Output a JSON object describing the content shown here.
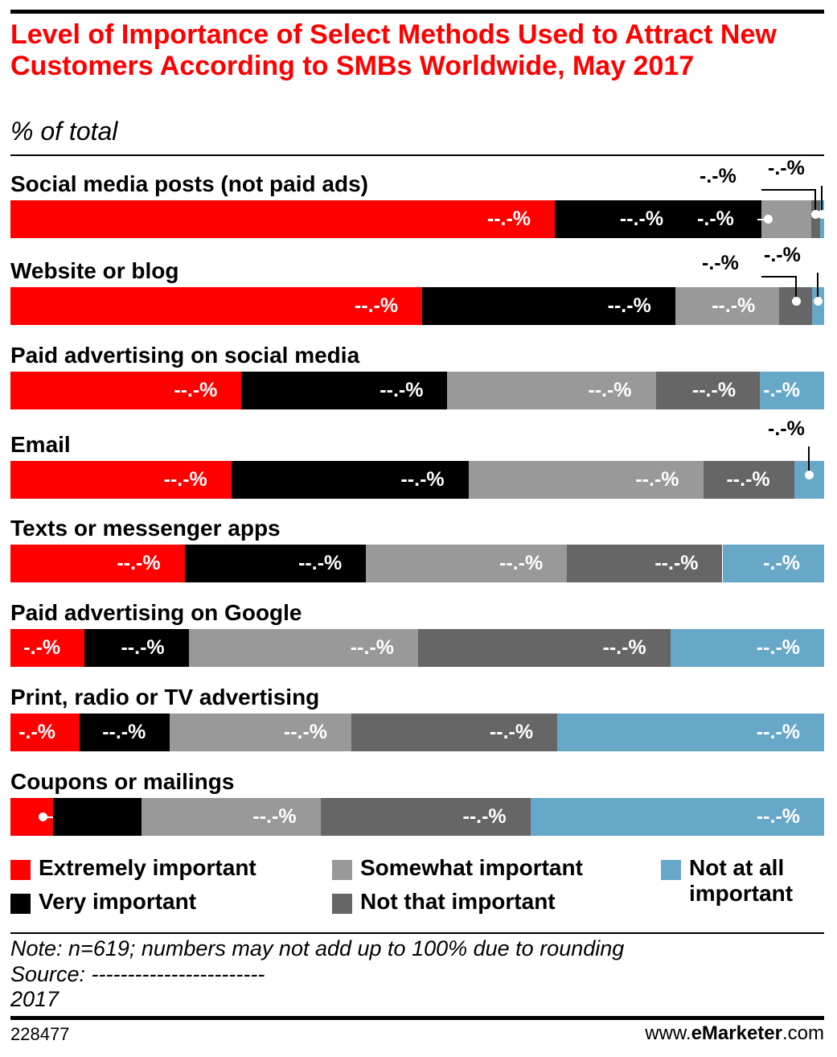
{
  "chart_data": {
    "type": "bar",
    "orientation": "horizontal",
    "stacked": true,
    "title": "Level of Importance of Select Methods Used to Attract New Customers According to SMBs Worldwide, May 2017",
    "subtitle": "% of total",
    "categories": [
      "Social media posts (not paid ads)",
      "Website or blog",
      "Paid advertising on social media",
      "Email",
      "Texts or messenger apps",
      "Paid advertising on Google",
      "Print, radio or TV advertising",
      "Coupons or mailings"
    ],
    "series": [
      {
        "name": "Extremely important",
        "color": "#ff0000",
        "values": [
          66.9,
          50.6,
          28.4,
          27.2,
          21.4,
          9.1,
          8.5,
          5.2
        ],
        "labels": [
          "--.-%",
          "--.-%",
          "--.-%",
          "--.-%",
          "--.-%",
          "-.-%",
          "-.-%",
          "-.-%"
        ]
      },
      {
        "name": "Very important",
        "color": "#000000",
        "values": [
          25.4,
          31.1,
          25.3,
          29.2,
          22.3,
          12.8,
          11.1,
          10.9
        ],
        "labels": [
          "--.-%",
          "--.-%",
          "--.-%",
          "--.-%",
          "--.-%",
          "--.-%",
          "--.-%",
          "--.-%"
        ]
      },
      {
        "name": "Somewhat important",
        "color": "#999999",
        "values": [
          6.1,
          12.8,
          25.6,
          28.9,
          24.7,
          28.2,
          22.3,
          22.0
        ],
        "labels": [
          "-.-%",
          "--.-%",
          "--.-%",
          "--.-%",
          "--.-%",
          "--.-%",
          "--.-%",
          "--.-%"
        ]
      },
      {
        "name": "Not that important",
        "color": "#666666",
        "values": [
          1.1,
          4.0,
          12.8,
          11.2,
          19.1,
          31.0,
          25.3,
          25.8
        ],
        "labels": [
          "-.-%",
          "-.-%",
          "--.-%",
          "--.-%",
          "--.-%",
          "--.-%",
          "--.-%",
          "--.-%"
        ]
      },
      {
        "name": "Not at all important",
        "color": "#67a8c8",
        "values": [
          0.5,
          1.5,
          7.9,
          3.7,
          12.5,
          18.9,
          32.8,
          36.1
        ],
        "labels": [
          "-.-%",
          "-.-%",
          "-.-%",
          "-.-%",
          "-.-%",
          "--.-%",
          "--.-%",
          "--.-%"
        ]
      }
    ],
    "xlim": [
      0,
      100
    ],
    "legend_position": "bottom"
  },
  "legend": [
    {
      "label": "Extremely important"
    },
    {
      "label": "Very important"
    },
    {
      "label": "Somewhat important"
    },
    {
      "label": "Not that important"
    },
    {
      "label": "Not at all important"
    }
  ],
  "notes": {
    "note": "Note: n=619; numbers may not add up to 100% due to rounding",
    "source": "Source: ------------------------",
    "year": "2017"
  },
  "footer": {
    "chart_id": "228477",
    "brand_pre": "www.",
    "brand_bold": "eMarketer",
    "brand_post": ".com"
  }
}
